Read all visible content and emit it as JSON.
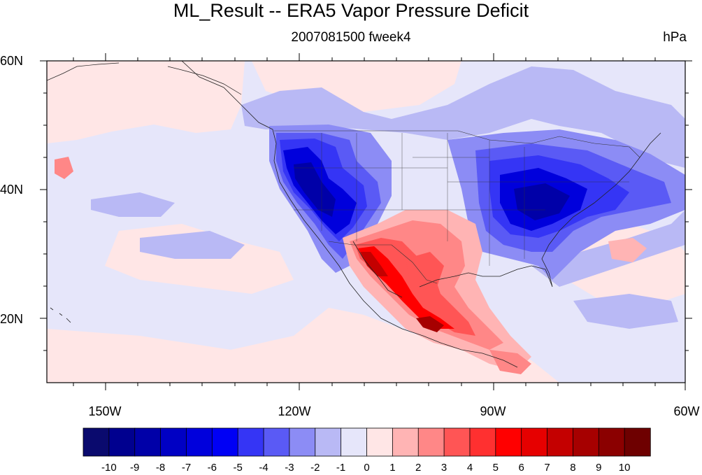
{
  "title": "ML_Result -- ERA5 Vapor Pressure Deficit",
  "subtitle_center": "2007081500 fweek4",
  "subtitle_right": "hPa",
  "lat_ticks": [
    "60N",
    "40N",
    "20N"
  ],
  "lon_ticks": [
    "150W",
    "120W",
    "90W",
    "60W"
  ],
  "colorbar": {
    "labels": [
      "-10",
      "-9",
      "-8",
      "-7",
      "-6",
      "-5",
      "-4",
      "-3",
      "-2",
      "-1",
      "0",
      "1",
      "2",
      "3",
      "4",
      "5",
      "6",
      "7",
      "8",
      "9",
      "10"
    ],
    "colors": [
      "#0a0a6e",
      "#00008f",
      "#0000a8",
      "#0000c4",
      "#0000dc",
      "#0000f5",
      "#3535f5",
      "#5a5af5",
      "#8c8cf5",
      "#b9b9f5",
      "#e6e6fa",
      "#ffe6e6",
      "#ffb4b4",
      "#ff8787",
      "#ff5555",
      "#ff3030",
      "#ff0000",
      "#e60000",
      "#c40000",
      "#a60000",
      "#8b0000",
      "#6e0000"
    ]
  },
  "map": {
    "extent_lon": [
      -159,
      -60
    ],
    "extent_lat": [
      10,
      60
    ],
    "background_color": "#e6e6fa"
  }
}
